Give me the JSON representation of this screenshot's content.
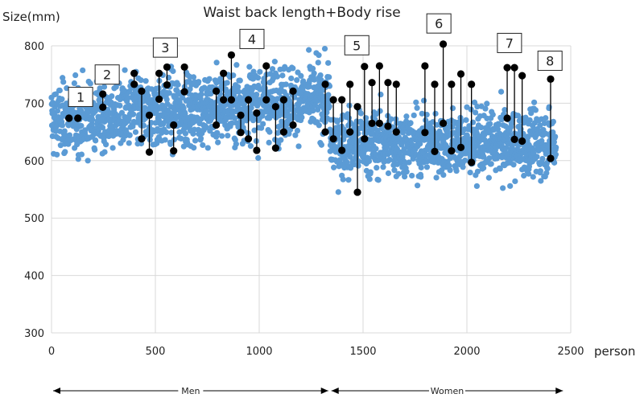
{
  "chart_data": {
    "type": "scatter",
    "title": "Waist back length+Body rise",
    "ylabel": "Size(mm)",
    "xlabel": "person",
    "xlim": [
      0,
      2500
    ],
    "ylim": [
      300,
      800
    ],
    "xticks": [
      0,
      500,
      1000,
      1500,
      2000,
      2500
    ],
    "yticks": [
      300,
      400,
      500,
      600,
      700,
      800
    ],
    "grid": true,
    "colors": {
      "population": "#5B9BD5",
      "pairs": "#000000"
    },
    "population": {
      "groups": [
        {
          "label": "Men",
          "x_range": [
            0,
            1340
          ],
          "y_center": 690,
          "y_range": [
            600,
            800
          ]
        },
        {
          "label": "Women",
          "x_range": [
            1340,
            2430
          ],
          "y_center": 630,
          "y_range": [
            520,
            800
          ]
        }
      ]
    },
    "pairs": [
      [
        84,
        674,
        674
      ],
      [
        127,
        674,
        674
      ],
      [
        247,
        716,
        693
      ],
      [
        398,
        752,
        733
      ],
      [
        434,
        721,
        638
      ],
      [
        471,
        679,
        615
      ],
      [
        518,
        752,
        707
      ],
      [
        556,
        763,
        732
      ],
      [
        588,
        662,
        617
      ],
      [
        640,
        763,
        720
      ],
      [
        793,
        721,
        662
      ],
      [
        828,
        752,
        706
      ],
      [
        866,
        784,
        706
      ],
      [
        911,
        679,
        649
      ],
      [
        948,
        706,
        638
      ],
      [
        988,
        683,
        618
      ],
      [
        1034,
        765,
        706
      ],
      [
        1079,
        694,
        622
      ],
      [
        1118,
        706,
        650
      ],
      [
        1163,
        721,
        662
      ],
      [
        1318,
        733,
        650
      ],
      [
        1357,
        706,
        638
      ],
      [
        1398,
        706,
        618
      ],
      [
        1437,
        733,
        650
      ],
      [
        1473,
        694,
        545
      ],
      [
        1507,
        764,
        638
      ],
      [
        1543,
        736,
        665
      ],
      [
        1579,
        765,
        665
      ],
      [
        1620,
        736,
        660
      ],
      [
        1660,
        733,
        650
      ],
      [
        1798,
        765,
        649
      ],
      [
        1845,
        733,
        616
      ],
      [
        1886,
        803,
        665
      ],
      [
        1926,
        733,
        617
      ],
      [
        1971,
        751,
        623
      ],
      [
        2022,
        733,
        597
      ],
      [
        2194,
        762,
        674
      ],
      [
        2229,
        762,
        637
      ],
      [
        2266,
        748,
        634
      ],
      [
        2403,
        742,
        604
      ]
    ],
    "annotations": [
      {
        "label": "1",
        "x": 140,
        "y": 711
      },
      {
        "label": "2",
        "x": 268,
        "y": 750
      },
      {
        "label": "3",
        "x": 548,
        "y": 797
      },
      {
        "label": "4",
        "x": 965,
        "y": 812
      },
      {
        "label": "5",
        "x": 1470,
        "y": 801
      },
      {
        "label": "6",
        "x": 1865,
        "y": 839
      },
      {
        "label": "7",
        "x": 2205,
        "y": 805
      },
      {
        "label": "8",
        "x": 2400,
        "y": 774
      }
    ],
    "group_arrows": [
      {
        "label": "Men",
        "x_range": [
          0,
          1340
        ]
      },
      {
        "label": "Women",
        "x_range": [
          1340,
          2470
        ]
      }
    ]
  }
}
